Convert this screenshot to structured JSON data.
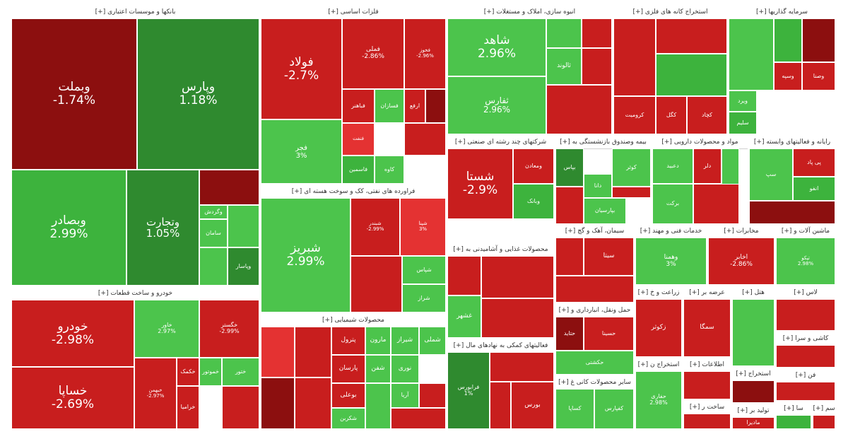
{
  "chart_data": {
    "type": "treemap",
    "colors": {
      "pos_strong": "#2f8a2f",
      "pos": "#3db33d",
      "pos_light": "#4cc44c",
      "neg": "#c81e1e",
      "neg_dark": "#8c0f0f",
      "neg_light": "#e43232"
    },
    "sectors": [
      {
        "name": "[+] بانکها و موسسات اعتباری",
        "items": [
          {
            "name": "وبملت",
            "change": "-1.74%"
          },
          {
            "name": "وپارس",
            "change": "1.18%"
          },
          {
            "name": "وبصادر",
            "change": "2.99%"
          },
          {
            "name": "وتجارت",
            "change": "1.05%"
          },
          {
            "name": "سامان",
            "change": ""
          },
          {
            "name": "وگردش",
            "change": ""
          },
          {
            "name": "وپاسار",
            "change": ""
          }
        ]
      },
      {
        "name": "[+] فلزات اساسی",
        "items": [
          {
            "name": "فولاد",
            "change": "-2.7%"
          },
          {
            "name": "فملی",
            "change": "-2.86%"
          },
          {
            "name": "فخوز",
            "change": "-2.96%"
          },
          {
            "name": "فجر",
            "change": "3%"
          },
          {
            "name": "فباهنر",
            "change": ""
          },
          {
            "name": "فسازان",
            "change": ""
          },
          {
            "name": "ارفع",
            "change": ""
          },
          {
            "name": "فاسمین",
            "change": ""
          },
          {
            "name": "کاوه",
            "change": ""
          },
          {
            "name": "فنفت",
            "change": ""
          }
        ]
      },
      {
        "name": "[+] انبوه سازی، املاک و مستغلات",
        "items": [
          {
            "name": "شاهد",
            "change": "2.96%"
          },
          {
            "name": "ثفارس",
            "change": "2.96%"
          },
          {
            "name": "ثالوند",
            "change": ""
          }
        ]
      },
      {
        "name": "[+] استخراج کانه های فلزی",
        "items": [
          {
            "name": "کگل",
            "change": ""
          },
          {
            "name": "کچاد",
            "change": ""
          },
          {
            "name": "کرومیت",
            "change": ""
          }
        ]
      },
      {
        "name": "[+] سرمایه گذاریها",
        "items": [
          {
            "name": "وسپه",
            "change": ""
          },
          {
            "name": "وصنا",
            "change": ""
          },
          {
            "name": "سلیم",
            "change": ""
          },
          {
            "name": "ویرد",
            "change": ""
          }
        ]
      },
      {
        "name": "[+] شرکتهای چند رشته ای صنعتی",
        "items": [
          {
            "name": "شستا",
            "change": "-2.9%"
          },
          {
            "name": "وبانک",
            "change": ""
          },
          {
            "name": "ومعادن",
            "change": ""
          }
        ]
      },
      {
        "name": "[+] بیمه وصندوق بازنشستگی به",
        "items": [
          {
            "name": "بپاس",
            "change": ""
          },
          {
            "name": "دانا",
            "change": ""
          },
          {
            "name": "بپارسیان",
            "change": ""
          },
          {
            "name": "کوثر",
            "change": ""
          }
        ]
      },
      {
        "name": "[+] مواد و محصولات دارویی",
        "items": [
          {
            "name": "دلر",
            "change": ""
          },
          {
            "name": "دعبید",
            "change": ""
          },
          {
            "name": "برکت",
            "change": ""
          }
        ]
      },
      {
        "name": "[+] رایانه و فعالیتهای وابسته",
        "items": [
          {
            "name": "پی پاد",
            "change": ""
          },
          {
            "name": "انفو",
            "change": ""
          },
          {
            "name": "سپ",
            "change": ""
          }
        ]
      },
      {
        "name": "[+] فراورده های نفتی، کک و سوخت هسته ای",
        "items": [
          {
            "name": "شبریز",
            "change": "2.99%"
          },
          {
            "name": "شبندر",
            "change": "-2.99%"
          },
          {
            "name": "شپنا",
            "change": "3%"
          },
          {
            "name": "شپاس",
            "change": ""
          },
          {
            "name": "شراز",
            "change": ""
          }
        ]
      },
      {
        "name": "[+] خودرو و ساخت قطعات",
        "items": [
          {
            "name": "خودرو",
            "change": "-2.98%"
          },
          {
            "name": "خساپا",
            "change": "-2.69%"
          },
          {
            "name": "خاور",
            "change": "2.97%"
          },
          {
            "name": "خگستر",
            "change": "-2.99%"
          },
          {
            "name": "خبهمن",
            "change": "-2.97%"
          },
          {
            "name": "خکمک",
            "change": ""
          },
          {
            "name": "خموتور",
            "change": ""
          },
          {
            "name": "ختور",
            "change": ""
          },
          {
            "name": "خرامیا",
            "change": ""
          }
        ]
      },
      {
        "name": "[+] محصولات شیمیایی",
        "items": [
          {
            "name": "پترول",
            "change": ""
          },
          {
            "name": "مارون",
            "change": ""
          },
          {
            "name": "شیراز",
            "change": ""
          },
          {
            "name": "شملی",
            "change": ""
          },
          {
            "name": "پارسان",
            "change": ""
          },
          {
            "name": "بوعلی",
            "change": ""
          },
          {
            "name": "شفن",
            "change": ""
          },
          {
            "name": "نوری",
            "change": ""
          },
          {
            "name": "شکربن",
            "change": ""
          },
          {
            "name": "آریا",
            "change": ""
          }
        ]
      },
      {
        "name": "[+] محصولات غذایی و آشامیدنی به",
        "items": [
          {
            "name": "غشهر",
            "change": ""
          }
        ]
      },
      {
        "name": "[+] فعالیتهای کمکی به نهادهای مال",
        "items": [
          {
            "name": "فرابورس",
            "change": "1%"
          },
          {
            "name": "بورس",
            "change": ""
          }
        ]
      },
      {
        "name": "[+] سیمان، آهک و گچ",
        "items": [
          {
            "name": "سیتا",
            "change": ""
          }
        ]
      },
      {
        "name": "[+] حمل ونقل، انبارداری و",
        "items": [
          {
            "name": "حسینا",
            "change": ""
          },
          {
            "name": "حکشتی",
            "change": ""
          },
          {
            "name": "حتاید",
            "change": ""
          }
        ]
      },
      {
        "name": "[+] سایر محصولات کانی غ",
        "items": [
          {
            "name": "کساپا",
            "change": ""
          },
          {
            "name": "کفپارس",
            "change": ""
          }
        ]
      },
      {
        "name": "[+] خدمات فنی و مهند",
        "items": [
          {
            "name": "وهمنا",
            "change": "3%"
          }
        ]
      },
      {
        "name": "[+] مخابرات",
        "items": [
          {
            "name": "اخابر",
            "change": "-2.86%"
          }
        ]
      },
      {
        "name": "[+] ماشین آلات و",
        "items": [
          {
            "name": "تپکو",
            "change": "2.98%"
          }
        ]
      },
      {
        "name": "[+] زراعت و خ",
        "items": [
          {
            "name": "زکوثر",
            "change": ""
          }
        ]
      },
      {
        "name": "[+] عرضه بر",
        "items": [
          {
            "name": "سمگا",
            "change": ""
          }
        ]
      },
      {
        "name": "[+] استخراج ن",
        "items": [
          {
            "name": "حفاری",
            "change": "2.98%"
          }
        ]
      },
      {
        "name": "[+] اطلاعات",
        "items": []
      },
      {
        "name": "[+] استخراج",
        "items": []
      },
      {
        "name": "[+] کاشی و سرا",
        "items": []
      },
      {
        "name": "[+] ساخت ر",
        "items": []
      },
      {
        "name": "[+] تولید بر",
        "items": [
          {
            "name": "مادیرا",
            "change": ""
          }
        ]
      },
      {
        "name": "[+] هتل",
        "items": []
      },
      {
        "name": "[+] لاس",
        "items": []
      },
      {
        "name": "[+] فن",
        "items": []
      },
      {
        "name": "[+] سا",
        "items": []
      },
      {
        "name": "[+] سم",
        "items": []
      }
    ]
  }
}
